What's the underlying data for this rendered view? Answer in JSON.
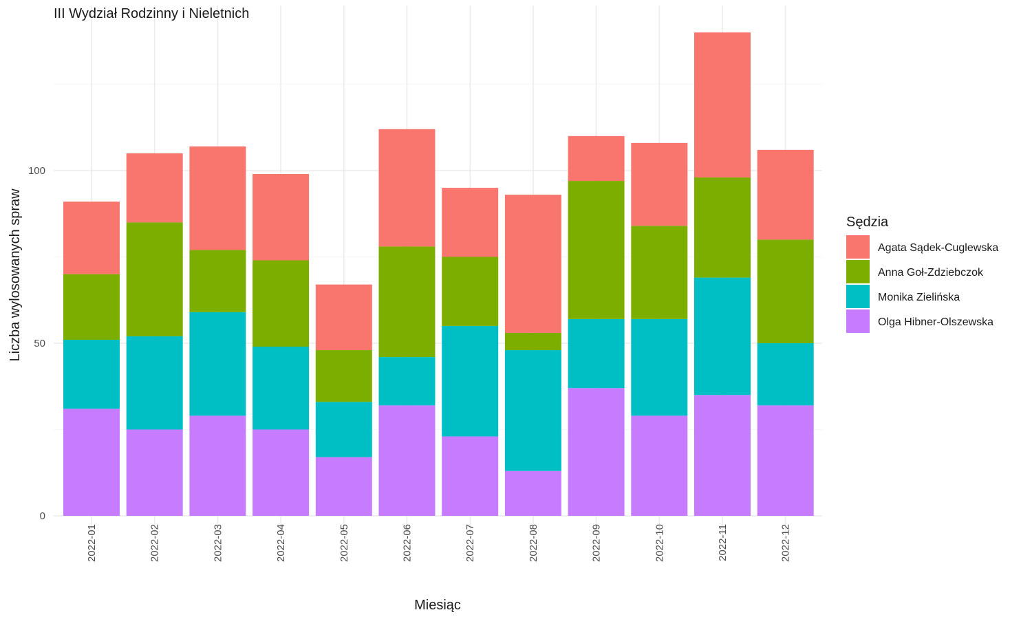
{
  "chart_data": {
    "type": "bar",
    "stacked": true,
    "title": "III Wydział Rodzinny i Nieletnich",
    "xlabel": "Miesiąc",
    "ylabel": "Liczba wylosowanych spraw",
    "ylim": [
      0,
      140
    ],
    "yticks": [
      0,
      50,
      100
    ],
    "grid": true,
    "legend": {
      "title": "Sędzia",
      "position": "right"
    },
    "categories": [
      "2022-01",
      "2022-02",
      "2022-03",
      "2022-04",
      "2022-05",
      "2022-06",
      "2022-07",
      "2022-08",
      "2022-09",
      "2022-10",
      "2022-11",
      "2022-12"
    ],
    "series": [
      {
        "name": "Olga Hibner-Olszewska",
        "color": "#C77CFF",
        "values": [
          31,
          25,
          29,
          25,
          17,
          32,
          23,
          13,
          37,
          29,
          35,
          32
        ]
      },
      {
        "name": "Monika Zielińska",
        "color": "#00BFC4",
        "values": [
          20,
          27,
          30,
          24,
          16,
          14,
          32,
          35,
          20,
          28,
          34,
          18
        ]
      },
      {
        "name": "Anna Goł-Zdziebczok",
        "color": "#7CAE00",
        "values": [
          19,
          33,
          18,
          25,
          15,
          32,
          20,
          5,
          40,
          27,
          29,
          30
        ]
      },
      {
        "name": "Agata Sądek-Cuglewska",
        "color": "#F8766D",
        "values": [
          21,
          20,
          30,
          25,
          19,
          34,
          20,
          40,
          13,
          24,
          42,
          26
        ]
      }
    ],
    "legend_order": [
      "Agata Sądek-Cuglewska",
      "Anna Goł-Zdziebczok",
      "Monika Zielińska",
      "Olga Hibner-Olszewska"
    ]
  }
}
